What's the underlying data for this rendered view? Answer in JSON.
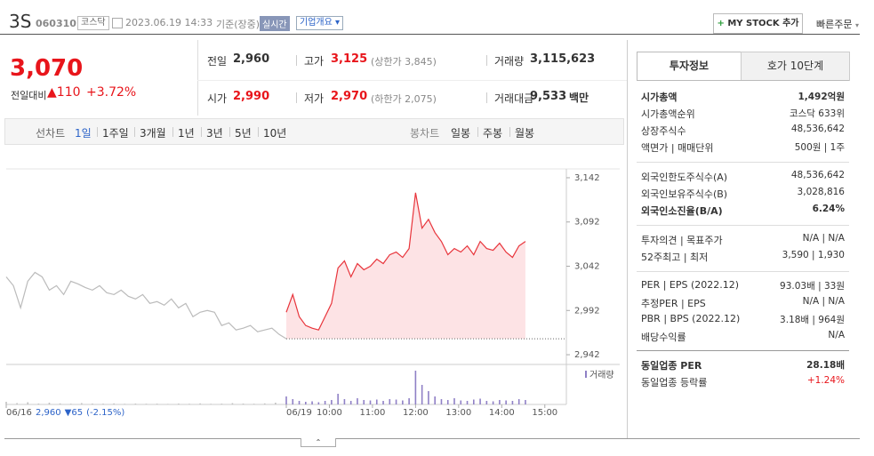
{
  "header": {
    "name": "3S",
    "code": "060310",
    "market": "코스닥",
    "datetime": "2023.06.19 14:33",
    "basis": "기준(장중)",
    "realtime": "실시간",
    "company_overview": "기업개요",
    "my_stock": "MY STOCK 추가",
    "quick_order": "빠른주문"
  },
  "quote": {
    "price": "3,070",
    "change_label": "전일대비",
    "change": "110",
    "rate": "+3.72%"
  },
  "summary": [
    [
      {
        "label": "전일",
        "value": "2,960"
      },
      {
        "label": "고가",
        "value": "3,125",
        "note": "(상한가 3,845)"
      },
      {
        "label": "거래량",
        "value": "3,115,623"
      }
    ],
    [
      {
        "label": "시가",
        "value": "2,990"
      },
      {
        "label": "저가",
        "value": "2,970",
        "note": "(하한가 2,075)"
      },
      {
        "label": "거래대금",
        "value": "9,533",
        "unit": "백만"
      }
    ]
  ],
  "chart_tabs": {
    "line_label": "선차트",
    "line_periods": [
      "1일",
      "1주일",
      "3개월",
      "1년",
      "3년",
      "5년",
      "10년"
    ],
    "candle_label": "봉차트",
    "candle_periods": [
      "일봉",
      "주봉",
      "월봉"
    ]
  },
  "prev_day": {
    "close": "2,960",
    "change": "65",
    "rate": "(-2.15%)"
  },
  "chart_data": [
    {
      "type": "line",
      "xlim": [
        0,
        780
      ],
      "xticks": [
        {
          "value": 0,
          "label": "06/16"
        },
        {
          "value": 390,
          "label": "06/19"
        },
        {
          "value": 450,
          "label": "10:00"
        },
        {
          "value": 510,
          "label": "11:00"
        },
        {
          "value": 570,
          "label": "12:00"
        },
        {
          "value": 630,
          "label": "13:00"
        },
        {
          "value": 690,
          "label": "14:00"
        },
        {
          "value": 750,
          "label": "15:00"
        }
      ],
      "ylim": [
        2932,
        3152
      ],
      "yticks": [
        {
          "value": 3142,
          "label": "3,142"
        },
        {
          "value": 3092,
          "label": "3,092"
        },
        {
          "value": 3042,
          "label": "3,042"
        },
        {
          "value": 2992,
          "label": "2,992"
        },
        {
          "value": 2942,
          "label": "2,942"
        }
      ],
      "reference": 2960,
      "series": [
        {
          "color": "#bbbbbb",
          "x": [
            0,
            10,
            20,
            30,
            40,
            50,
            60,
            70,
            80,
            90,
            100,
            110,
            120,
            130,
            140,
            150,
            160,
            170,
            180,
            190,
            200,
            210,
            220,
            230,
            240,
            250,
            260,
            270,
            280,
            290,
            300,
            310,
            320,
            330,
            340,
            350,
            360,
            370,
            380,
            390
          ],
          "values": [
            3030,
            3020,
            2995,
            3025,
            3035,
            3030,
            3015,
            3020,
            3010,
            3025,
            3022,
            3018,
            3015,
            3020,
            3012,
            3010,
            3015,
            3008,
            3005,
            3010,
            3000,
            3002,
            2998,
            3005,
            2995,
            3000,
            2985,
            2990,
            2992,
            2990,
            2975,
            2978,
            2970,
            2972,
            2975,
            2968,
            2970,
            2972,
            2965,
            2960
          ]
        },
        {
          "color": "#e8343b",
          "fill": "#fde3e5",
          "x": [
            390,
            399,
            408,
            417,
            426,
            435,
            444,
            453,
            462,
            471,
            480,
            489,
            498,
            507,
            516,
            525,
            534,
            543,
            552,
            561,
            570,
            579,
            588,
            597,
            606,
            615,
            624,
            633,
            642,
            651,
            660,
            669,
            678,
            687,
            696,
            705,
            714,
            723
          ],
          "values": [
            2990,
            3010,
            2985,
            2975,
            2972,
            2970,
            2985,
            3000,
            3040,
            3048,
            3030,
            3045,
            3038,
            3042,
            3050,
            3045,
            3055,
            3058,
            3052,
            3062,
            3125,
            3085,
            3095,
            3080,
            3070,
            3055,
            3062,
            3058,
            3065,
            3055,
            3070,
            3062,
            3060,
            3068,
            3058,
            3052,
            3065,
            3070
          ]
        }
      ]
    },
    {
      "type": "bar",
      "label": "거래량",
      "ylim": [
        0,
        400000
      ],
      "series": [
        {
          "color": "#c2c2c2",
          "x": [
            0,
            15,
            30,
            45,
            60,
            75,
            90,
            105,
            120,
            135,
            150,
            165,
            180,
            195,
            210,
            225,
            240,
            255,
            270,
            285,
            300,
            315,
            330,
            345,
            360,
            375
          ],
          "values": [
            30000,
            15000,
            25000,
            10000,
            20000,
            12000,
            8000,
            15000,
            10000,
            9000,
            12000,
            7000,
            10000,
            8000,
            9000,
            6000,
            10000,
            8000,
            12000,
            7000,
            9000,
            15000,
            10000,
            8000,
            12000,
            20000
          ]
        },
        {
          "color": "#8f80c6",
          "x": [
            390,
            399,
            408,
            417,
            426,
            435,
            444,
            453,
            462,
            471,
            480,
            489,
            498,
            507,
            516,
            525,
            534,
            543,
            552,
            561,
            570,
            579,
            588,
            597,
            606,
            615,
            624,
            633,
            642,
            651,
            660,
            669,
            678,
            687,
            696,
            705,
            714,
            723
          ],
          "values": [
            90000,
            60000,
            40000,
            30000,
            35000,
            25000,
            40000,
            50000,
            120000,
            60000,
            40000,
            70000,
            50000,
            45000,
            55000,
            40000,
            60000,
            55000,
            45000,
            70000,
            380000,
            220000,
            150000,
            90000,
            60000,
            50000,
            70000,
            45000,
            40000,
            55000,
            65000,
            40000,
            35000,
            50000,
            45000,
            40000,
            60000,
            50000
          ]
        }
      ]
    }
  ],
  "sidebar": {
    "tabs": [
      "투자정보",
      "호가 10단계"
    ],
    "groups": [
      [
        {
          "label": "시가총액",
          "value": "1,492억원"
        },
        {
          "label": "시가총액순위",
          "value": "코스닥 633위"
        },
        {
          "label": "상장주식수",
          "value": "48,536,642"
        },
        {
          "label": "액면가 | 매매단위",
          "value": "500원 | 1주"
        }
      ],
      [
        {
          "label": "외국인한도주식수(A)",
          "value": "48,536,642"
        },
        {
          "label": "외국인보유주식수(B)",
          "value": "3,028,816"
        },
        {
          "label": "외국인소진율(B/A)",
          "value": "6.24%"
        }
      ],
      [
        {
          "label": "투자의견 | 목표주가",
          "value": "N/A | N/A"
        },
        {
          "label": "52주최고 | 최저",
          "value": "3,590 | 1,930"
        }
      ],
      [
        {
          "label": "PER | EPS (2022.12)",
          "value": "93.03배 | 33원"
        },
        {
          "label": "추정PER | EPS",
          "value": "N/A | N/A"
        },
        {
          "label": "PBR | BPS (2022.12)",
          "value": "3.18배 | 964원"
        },
        {
          "label": "배당수익률",
          "value": "N/A"
        }
      ],
      [
        {
          "label": "동일업종 PER",
          "value": "28.18배"
        },
        {
          "label": "동일업종 등락률",
          "value": "+1.24%"
        }
      ]
    ]
  }
}
